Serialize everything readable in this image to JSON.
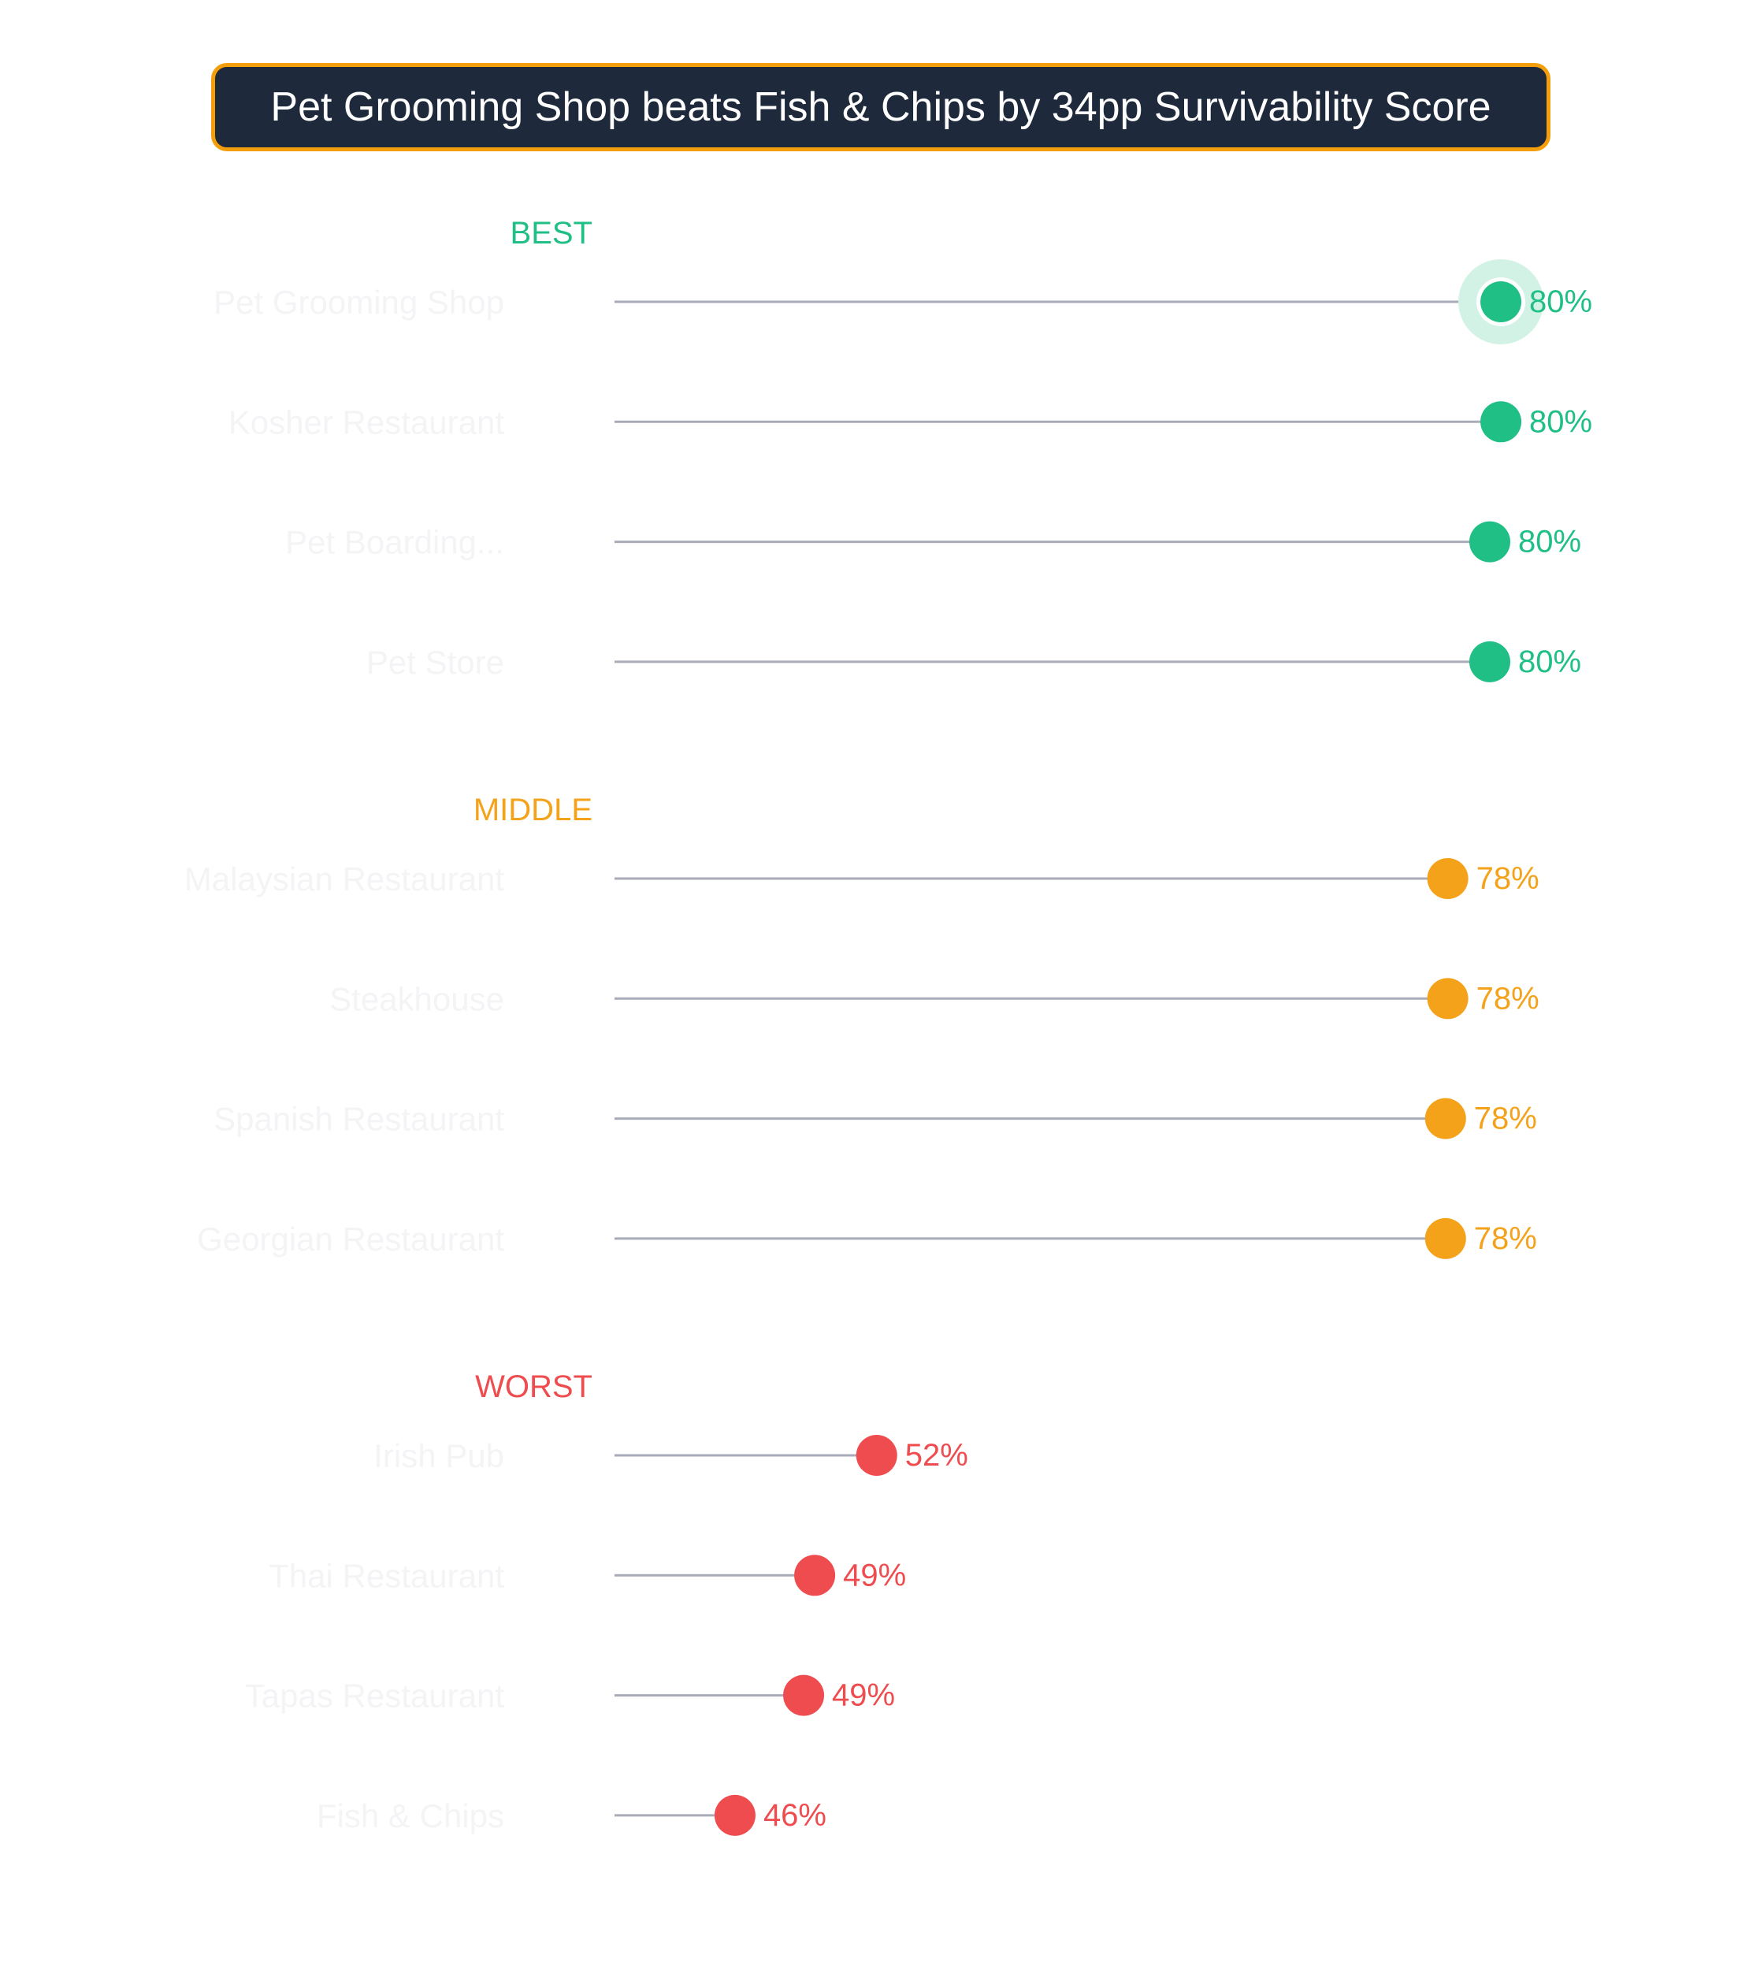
{
  "title": "Pet Grooming Shop beats Fish & Chips by 34pp Survivability Score",
  "colors": {
    "best": "#1fbf86",
    "middle": "#f5a21b",
    "worst": "#ef4c50",
    "stem": "#a9abb8",
    "category_text": "#f4f4f6",
    "title_bg": "#1e293b",
    "title_border": "#f59e0b",
    "highlight_halo": "#d3f2e6"
  },
  "chart_data": {
    "type": "lollipop",
    "title": "Pet Grooming Shop beats Fish & Chips by 34pp Survivability Score",
    "xlabel": "",
    "ylabel": "",
    "xlim": [
      40,
      82
    ],
    "value_unit": "%",
    "highlight": "Pet Grooming Shop",
    "groups": [
      {
        "name": "BEST",
        "color_key": "best",
        "items": [
          {
            "label": "Pet Grooming Shop",
            "value": 80.4,
            "display": "80%"
          },
          {
            "label": "Kosher Restaurant",
            "value": 80.4,
            "display": "80%"
          },
          {
            "label": "Pet Boarding...",
            "value": 79.9,
            "display": "80%"
          },
          {
            "label": "Pet Store",
            "value": 79.9,
            "display": "80%"
          }
        ]
      },
      {
        "name": "MIDDLE",
        "color_key": "middle",
        "items": [
          {
            "label": "Malaysian Restaurant",
            "value": 78.0,
            "display": "78%"
          },
          {
            "label": "Steakhouse",
            "value": 78.0,
            "display": "78%"
          },
          {
            "label": "Spanish Restaurant",
            "value": 77.9,
            "display": "78%"
          },
          {
            "label": "Georgian Restaurant",
            "value": 77.9,
            "display": "78%"
          }
        ]
      },
      {
        "name": "WORST",
        "color_key": "worst",
        "items": [
          {
            "label": "Irish Pub",
            "value": 52.2,
            "display": "52%"
          },
          {
            "label": "Thai Restaurant",
            "value": 49.4,
            "display": "49%"
          },
          {
            "label": "Tapas Restaurant",
            "value": 48.9,
            "display": "49%"
          },
          {
            "label": "Fish & Chips",
            "value": 45.8,
            "display": "46%"
          }
        ]
      }
    ]
  }
}
